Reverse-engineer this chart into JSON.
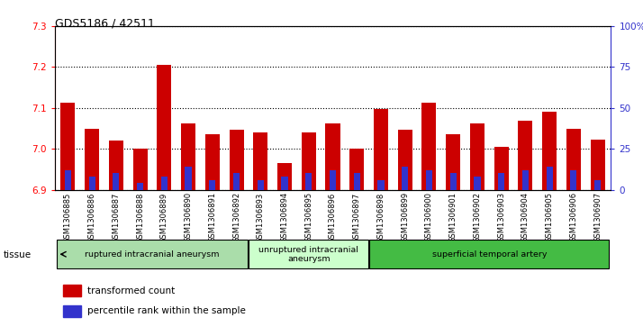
{
  "title": "GDS5186 / 42511",
  "samples": [
    "GSM1306885",
    "GSM1306886",
    "GSM1306887",
    "GSM1306888",
    "GSM1306889",
    "GSM1306890",
    "GSM1306891",
    "GSM1306892",
    "GSM1306893",
    "GSM1306894",
    "GSM1306895",
    "GSM1306896",
    "GSM1306897",
    "GSM1306898",
    "GSM1306899",
    "GSM1306900",
    "GSM1306901",
    "GSM1306902",
    "GSM1306903",
    "GSM1306904",
    "GSM1306905",
    "GSM1306906",
    "GSM1306907"
  ],
  "transformed_count": [
    7.113,
    7.048,
    7.02,
    7.0,
    7.205,
    7.063,
    7.035,
    7.047,
    7.04,
    6.965,
    7.04,
    7.063,
    7.0,
    7.098,
    7.047,
    7.113,
    7.035,
    7.063,
    7.005,
    7.068,
    7.09,
    7.048,
    7.022
  ],
  "percentile_rank": [
    12,
    8,
    10,
    4,
    8,
    14,
    6,
    10,
    6,
    8,
    10,
    12,
    10,
    6,
    14,
    12,
    10,
    8,
    10,
    12,
    14,
    12,
    6
  ],
  "ylim_left": [
    6.9,
    7.3
  ],
  "ylim_right": [
    0,
    100
  ],
  "yticks_left": [
    6.9,
    7.0,
    7.1,
    7.2,
    7.3
  ],
  "yticks_right": [
    0,
    25,
    50,
    75,
    100
  ],
  "ytick_labels_right": [
    "0",
    "25",
    "50",
    "75",
    "100%"
  ],
  "bar_color": "#cc0000",
  "percentile_color": "#3333cc",
  "background_color": "#ffffff",
  "groups": [
    {
      "label": "ruptured intracranial aneurysm",
      "start": 0,
      "end": 8,
      "color": "#aaddaa"
    },
    {
      "label": "unruptured intracranial\naneurysm",
      "start": 8,
      "end": 13,
      "color": "#ccffcc"
    },
    {
      "label": "superficial temporal artery",
      "start": 13,
      "end": 23,
      "color": "#44bb44"
    }
  ],
  "tissue_label": "tissue",
  "legend_items": [
    {
      "label": "transformed count",
      "color": "#cc0000"
    },
    {
      "label": "percentile rank within the sample",
      "color": "#3333cc"
    }
  ]
}
